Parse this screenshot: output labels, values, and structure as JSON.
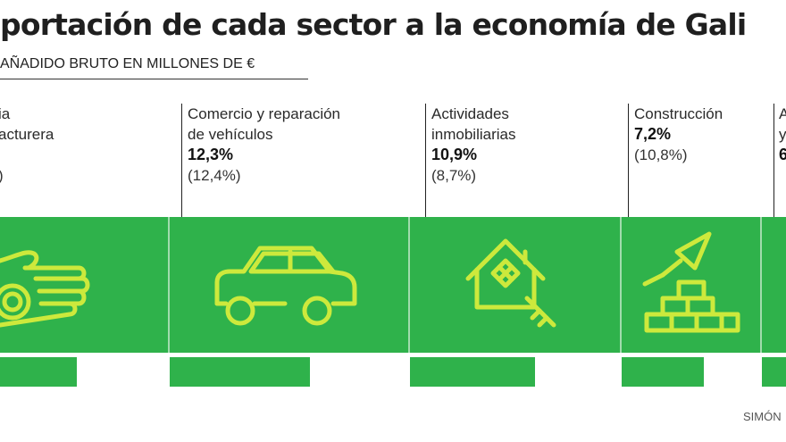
{
  "chart_data": {
    "type": "bar",
    "title": "portación de cada sector a la economía de Gali",
    "subtitle": "AÑADIDO BRUTO EN MILLONES DE €",
    "categories": [
      {
        "name_lines": [
          "ia",
          "acturera"
        ],
        "value_label": "",
        "prev_label": ")"
      },
      {
        "name_lines": [
          "Comercio y reparación",
          "de vehículos"
        ],
        "value_label": "12,3%",
        "prev_label": "(12,4%)"
      },
      {
        "name_lines": [
          "Actividades",
          "inmobiliarias"
        ],
        "value_label": "10,9%",
        "prev_label": "(8,7%)"
      },
      {
        "name_lines": [
          "Construcción"
        ],
        "value_label": "7,2%",
        "prev_label": "(10,8%)"
      },
      {
        "name_lines": [
          "A",
          "y",
          "6"
        ],
        "value_label": "",
        "prev_label": ""
      }
    ],
    "values": [
      null,
      12.3,
      10.9,
      7.2,
      null
    ],
    "previous_values": [
      null,
      12.4,
      8.7,
      10.8,
      null
    ]
  },
  "icons": [
    "hand-icon",
    "car-icon",
    "house-key-icon",
    "trowel-bricks-icon",
    ""
  ],
  "colors": {
    "accent": "#2fb24b",
    "icon_line": "#cde93c",
    "text": "#1f1f1f"
  },
  "credit": "SIMÓN"
}
